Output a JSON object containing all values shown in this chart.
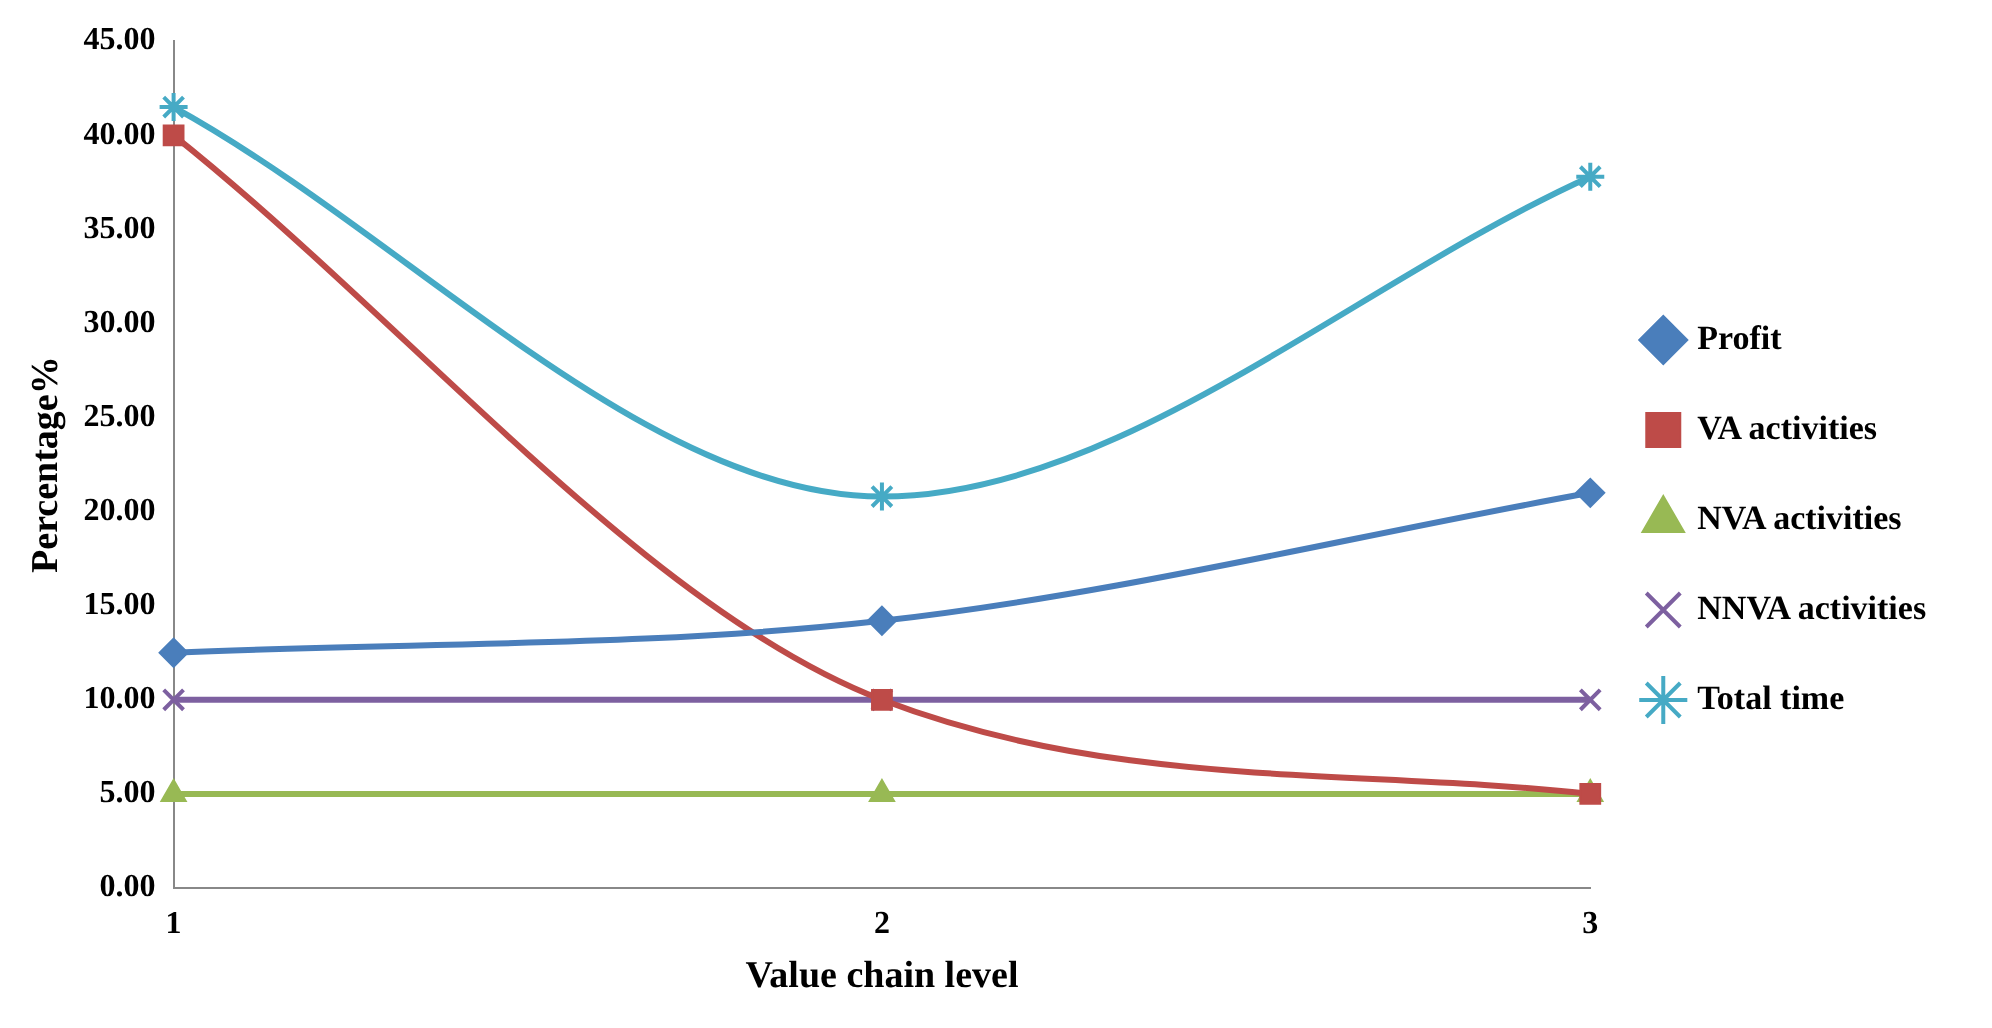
{
  "chart_data": {
    "type": "line",
    "xlabel": "Value chain level",
    "ylabel": "Percentage%",
    "categories": [
      "1",
      "2",
      "3"
    ],
    "series": [
      {
        "name": "Profit",
        "color": "#4a7ebb",
        "marker": "diamond",
        "values": [
          12.5,
          14.2,
          21.0
        ]
      },
      {
        "name": "VA activities",
        "color": "#be4b48",
        "marker": "square",
        "values": [
          40.0,
          10.0,
          5.0
        ]
      },
      {
        "name": "NVA activities",
        "color": "#98b954",
        "marker": "triangle",
        "values": [
          5.0,
          5.0,
          5.0
        ]
      },
      {
        "name": "NNVA activities",
        "color": "#7d60a0",
        "marker": "cross",
        "values": [
          10.0,
          10.0,
          10.0
        ]
      },
      {
        "name": "Total time",
        "color": "#46aac5",
        "marker": "cross",
        "values": [
          41.5,
          20.8,
          37.8
        ]
      }
    ],
    "ylim": [
      0,
      45
    ],
    "yticks": [
      {
        "value": 0,
        "label": "0.00"
      },
      {
        "value": 5,
        "label": "5.00"
      },
      {
        "value": 10,
        "label": "10.00"
      },
      {
        "value": 15,
        "label": "15.00"
      },
      {
        "value": 20,
        "label": "20.00"
      },
      {
        "value": 25,
        "label": "25.00"
      },
      {
        "value": 30,
        "label": "30.00"
      },
      {
        "value": 35,
        "label": "35.00"
      },
      {
        "value": 40,
        "label": "40.00"
      },
      {
        "value": 45,
        "label": "45.00"
      }
    ],
    "grid": false,
    "legend": "right",
    "line_style": "solid"
  }
}
